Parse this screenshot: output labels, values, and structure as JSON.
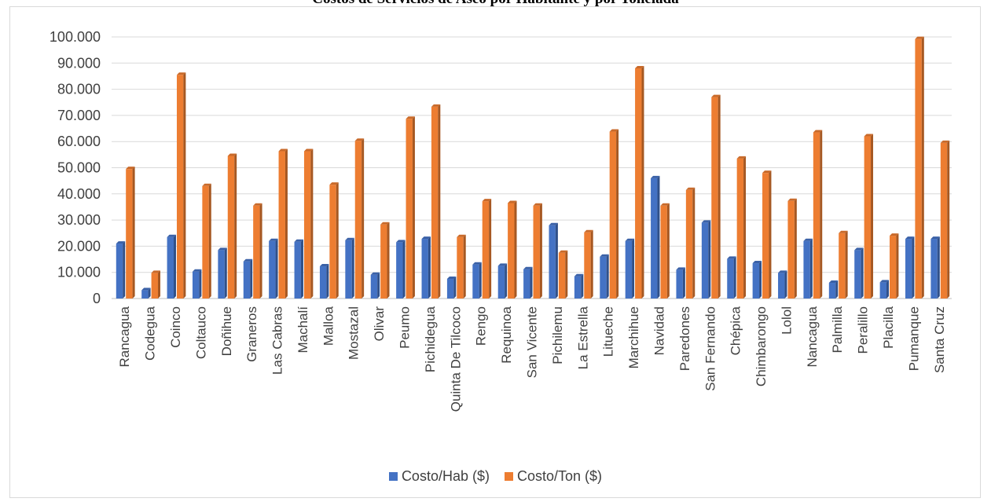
{
  "chart_data": {
    "type": "bar",
    "title": "Costos de Servicios de Aseo por Habitante y por Tonelada",
    "categories": [
      "Rancagua",
      "Codegua",
      "Coinco",
      "Coltauco",
      "Doñihue",
      "Graneros",
      "Las Cabras",
      "Machalí",
      "Malloa",
      "Mostazal",
      "Olivar",
      "Peumo",
      "Pichidegua",
      "Quinta De Tilcoco",
      "Rengo",
      "Requinoa",
      "San Vicente",
      "Pichilemu",
      "La Estrella",
      "Litueche",
      "Marchihue",
      "Navidad",
      "Paredones",
      "San Fernando",
      "Chépica",
      "Chimbarongo",
      "Lolol",
      "Nancagua",
      "Palmilla",
      "Peralillo",
      "Placilla",
      "Pumanque",
      "Santa Cruz"
    ],
    "series": [
      {
        "name": "Costo/Hab ($)",
        "color": "#4472c4",
        "values": [
          21000,
          3200,
          23500,
          10300,
          18500,
          14200,
          22000,
          21700,
          12300,
          22300,
          9100,
          21500,
          22800,
          7500,
          13000,
          12500,
          11200,
          28000,
          8500,
          16000,
          22000,
          46000,
          11000,
          29000,
          15200,
          13500,
          9800,
          22000,
          6000,
          18500,
          6200,
          22800,
          22800
        ]
      },
      {
        "name": "Costo/Ton ($)",
        "color": "#ed7d31",
        "values": [
          49500,
          9800,
          85500,
          43000,
          54500,
          35500,
          56300,
          56300,
          43500,
          60300,
          28300,
          68700,
          73300,
          23500,
          37200,
          36500,
          35500,
          17500,
          25300,
          63800,
          88000,
          35500,
          41500,
          77000,
          53500,
          48000,
          37300,
          63500,
          25000,
          62000,
          24000,
          99200,
          59500
        ]
      }
    ],
    "ylim": [
      0,
      100000
    ],
    "yticks": [
      "0",
      "10.000",
      "20.000",
      "30.000",
      "40.000",
      "50.000",
      "60.000",
      "70.000",
      "80.000",
      "90.000",
      "100.000"
    ],
    "grid": true,
    "legend_position": "bottom"
  }
}
